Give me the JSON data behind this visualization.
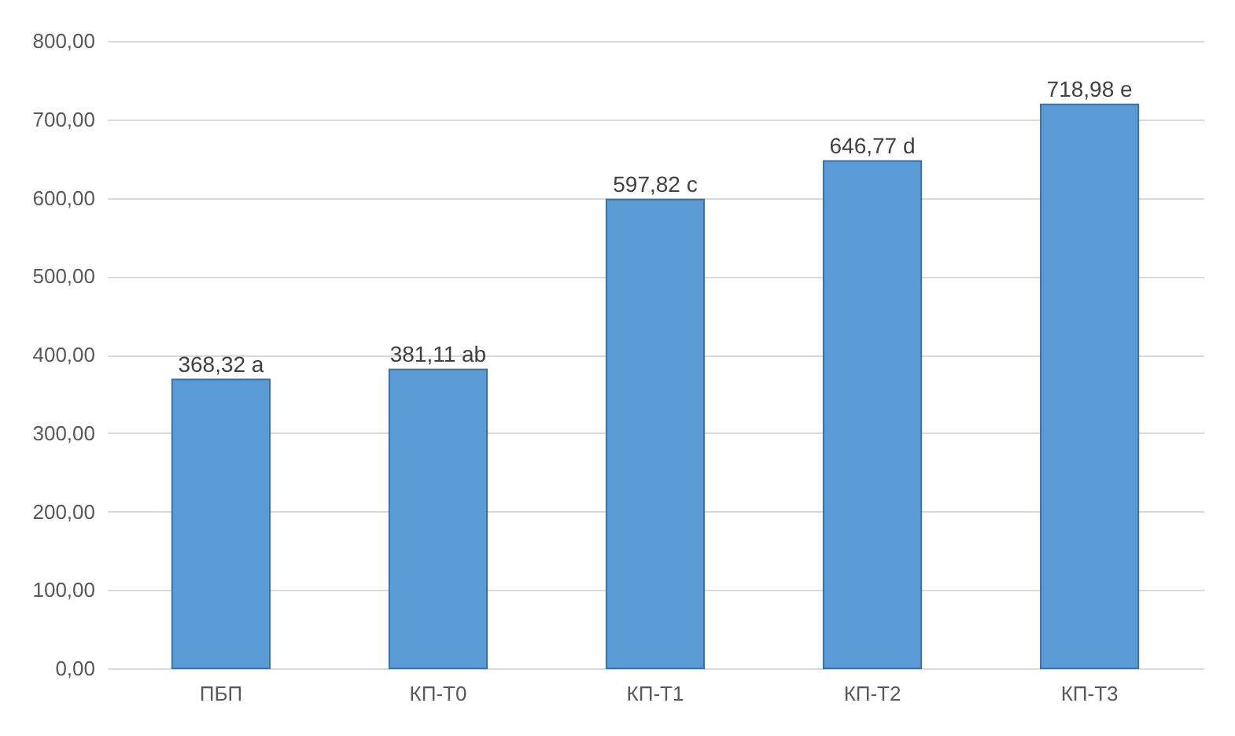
{
  "chart_data": {
    "type": "bar",
    "categories": [
      "ПБП",
      "КП-Т0",
      "КП-Т1",
      "КП-Т2",
      "КП-Т3"
    ],
    "values": [
      368.32,
      381.11,
      597.82,
      646.77,
      718.98
    ],
    "value_labels": [
      "368,32 a",
      "381,11 ab",
      "597,82 c",
      "646,77 d",
      "718,98 e"
    ],
    "color": "#5b9bd5",
    "ylim": [
      0,
      800
    ],
    "yticks": [
      {
        "value": 0,
        "label": "0,00"
      },
      {
        "value": 100,
        "label": "100,00"
      },
      {
        "value": 200,
        "label": "200,00"
      },
      {
        "value": 300,
        "label": "300,00"
      },
      {
        "value": 400,
        "label": "400,00"
      },
      {
        "value": 500,
        "label": "500,00"
      },
      {
        "value": 600,
        "label": "600,00"
      },
      {
        "value": 700,
        "label": "700,00"
      },
      {
        "value": 800,
        "label": "800,00"
      }
    ],
    "grid": "y"
  }
}
